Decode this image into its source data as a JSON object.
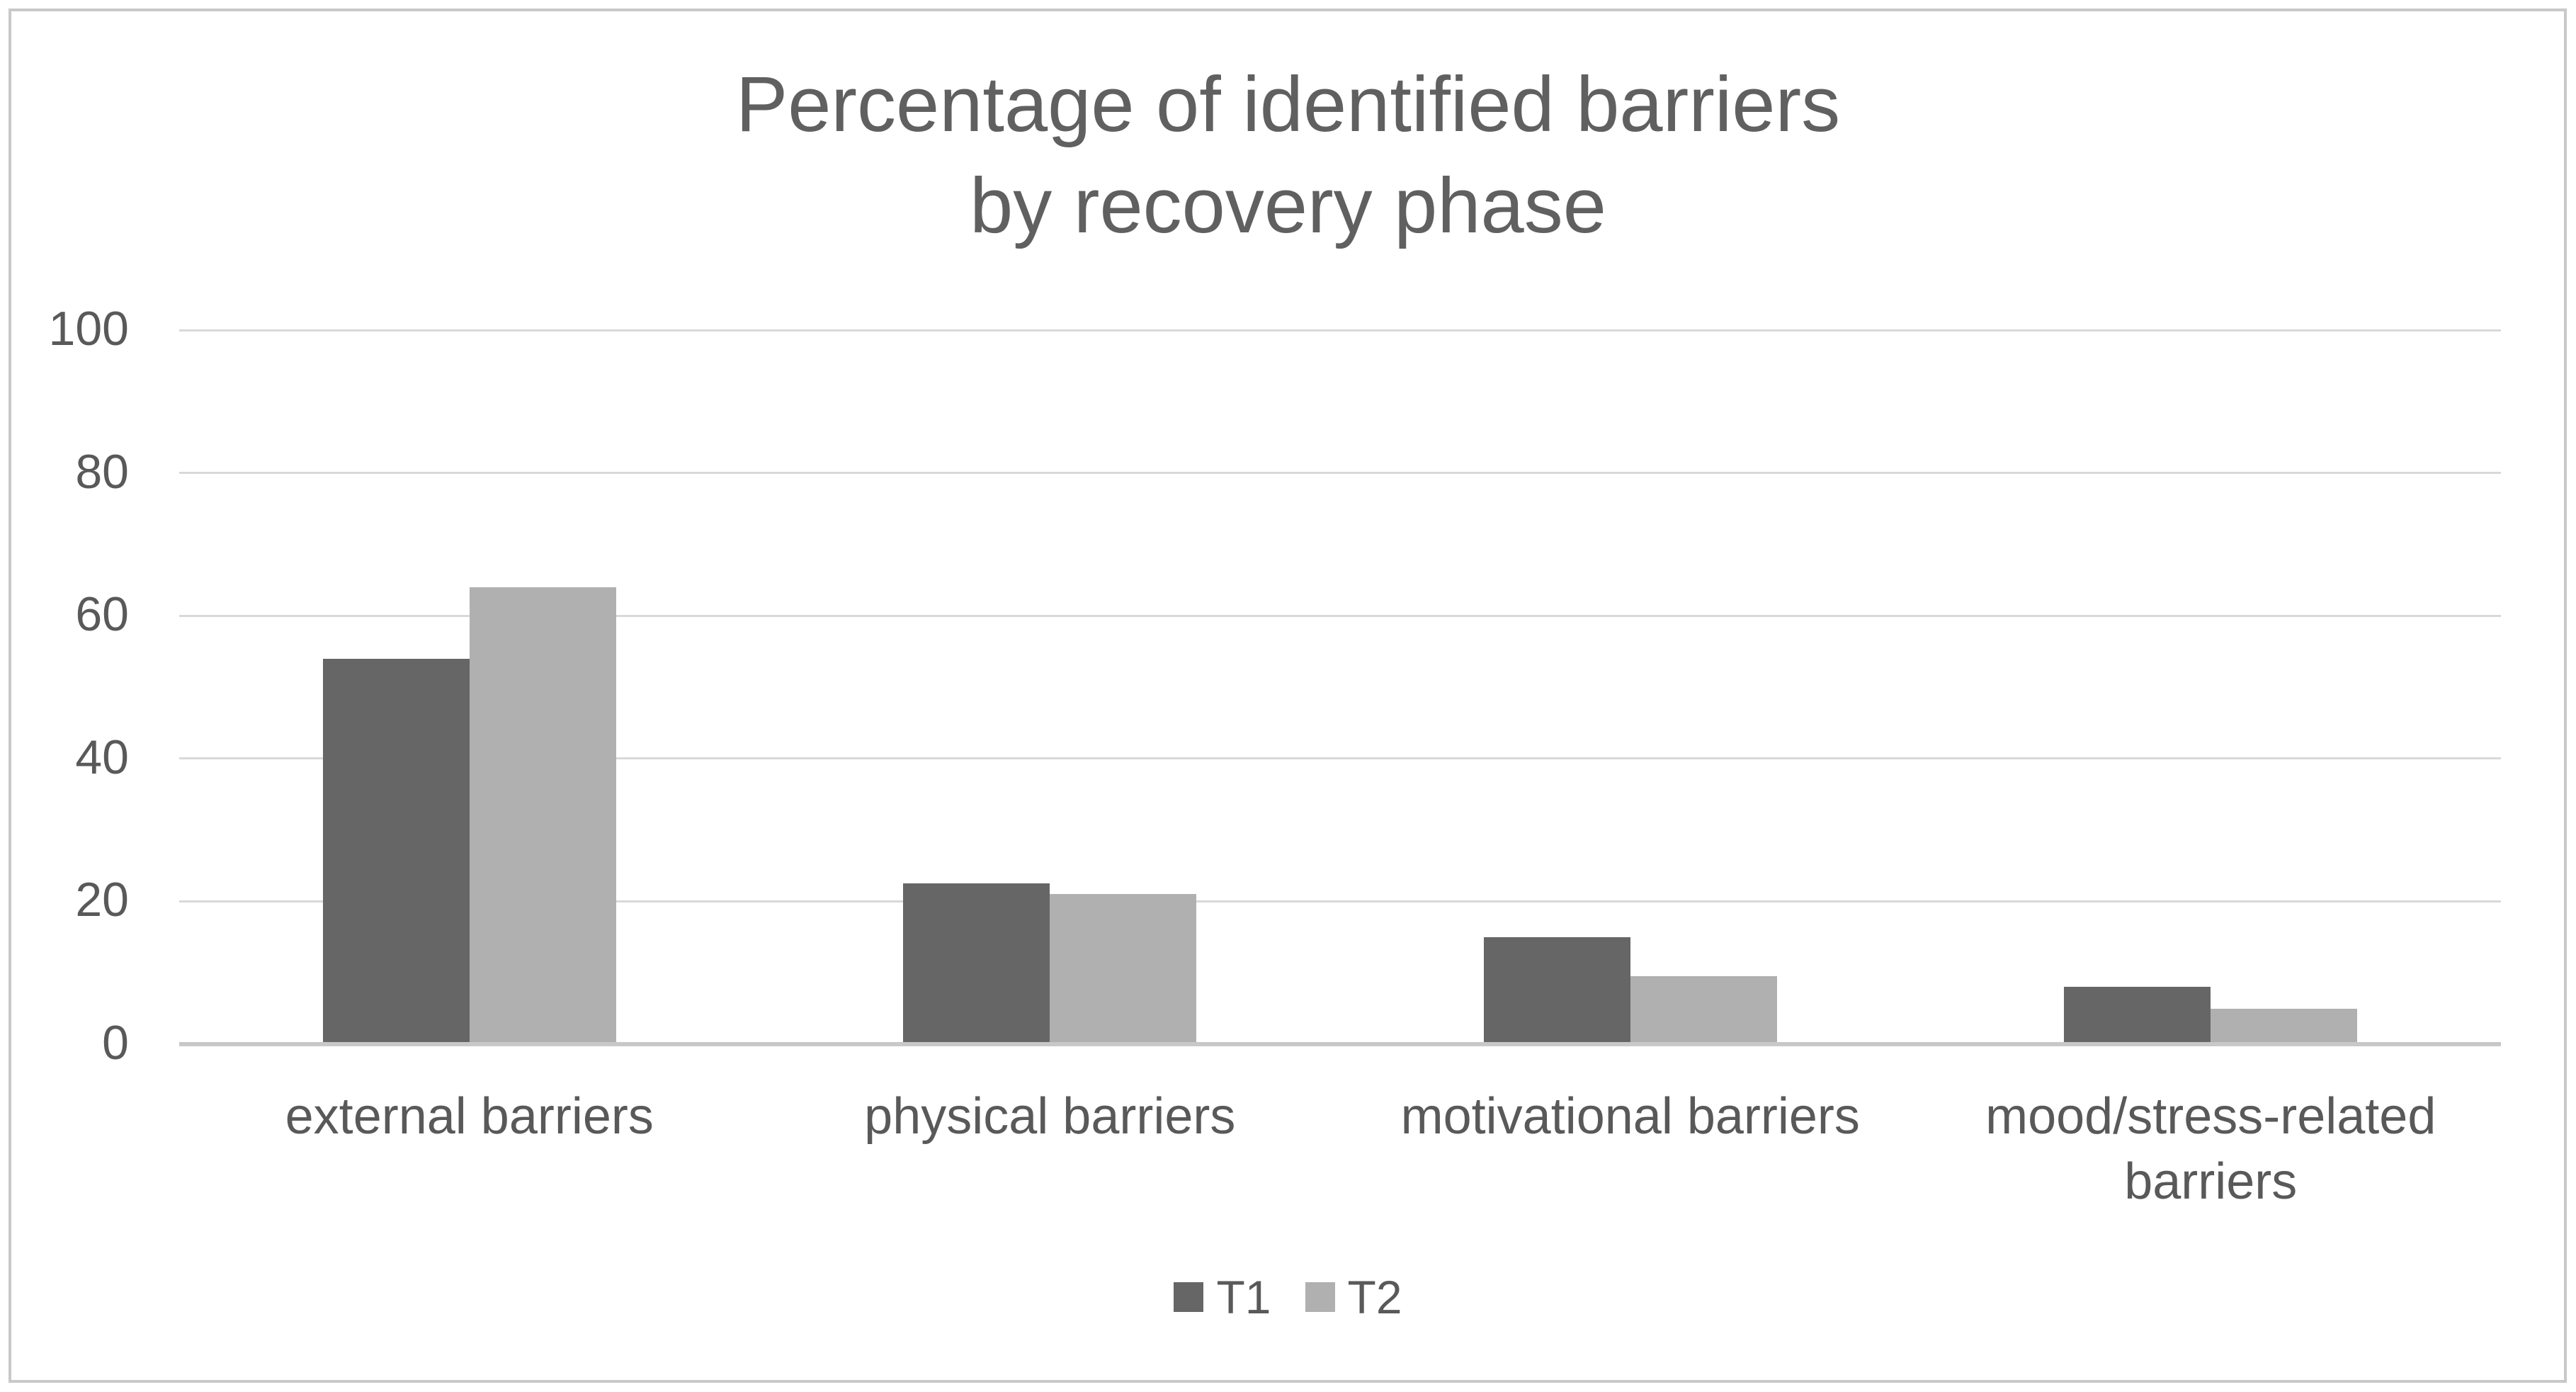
{
  "page": {
    "background": "#ffffff",
    "border_color": "#c9c9c9"
  },
  "chart_data": {
    "type": "bar",
    "title": "Percentage of identified barriers by recovery phase",
    "title_lines": [
      "Percentage of identified barriers",
      "by recovery phase"
    ],
    "categories": [
      "external barriers",
      "physical barriers",
      "motivational barriers",
      "mood/stress-related\nbarriers"
    ],
    "series": [
      {
        "name": "T1",
        "color": "#666666",
        "values": [
          54,
          22.5,
          15,
          8
        ]
      },
      {
        "name": "T2",
        "color": "#b0b0b0",
        "values": [
          64,
          21,
          9.5,
          5
        ]
      }
    ],
    "xlabel": "",
    "ylabel": "",
    "ylim": [
      0,
      100
    ],
    "yticks": [
      0,
      20,
      40,
      60,
      80,
      100
    ],
    "grid": "horizontal",
    "gridline_color": "#d9d9d9",
    "axis_line_color": "#c8c8c8",
    "text_color": "#595959",
    "legend_position": "bottom"
  }
}
